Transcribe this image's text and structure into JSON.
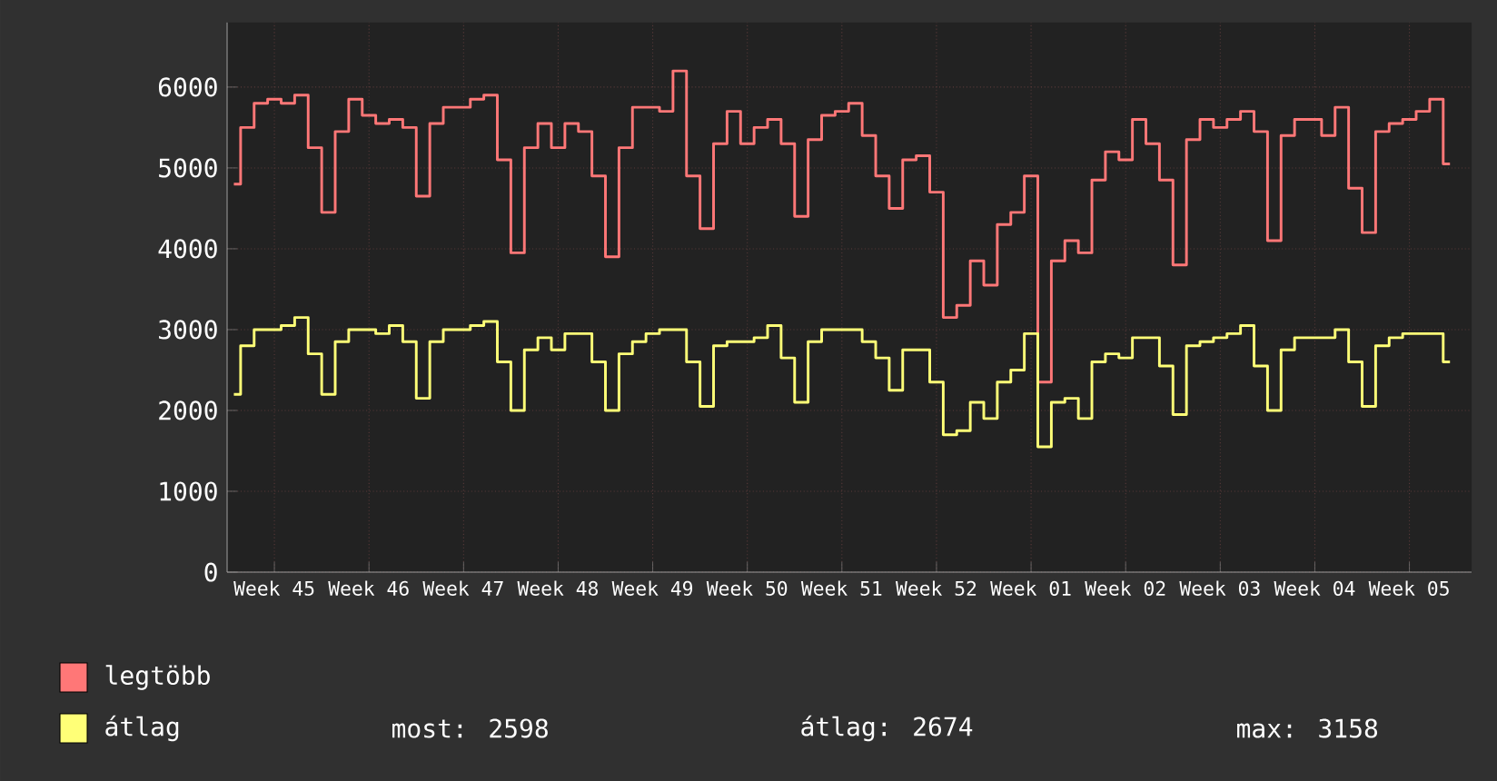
{
  "chart_data": {
    "type": "step",
    "categories": [
      null,
      null,
      null,
      "Week 45",
      null,
      null,
      null,
      null,
      null,
      null,
      "Week 46",
      null,
      null,
      null,
      null,
      null,
      null,
      "Week 47",
      null,
      null,
      null,
      null,
      null,
      null,
      "Week 48",
      null,
      null,
      null,
      null,
      null,
      null,
      "Week 49",
      null,
      null,
      null,
      null,
      null,
      null,
      "Week 50",
      null,
      null,
      null,
      null,
      null,
      null,
      "Week 51",
      null,
      null,
      null,
      null,
      null,
      null,
      "Week 52",
      null,
      null,
      null,
      null,
      null,
      null,
      "Week 01",
      null,
      null,
      null,
      null,
      null,
      null,
      "Week 02",
      null,
      null,
      null,
      null,
      null,
      null,
      "Week 03",
      null,
      null,
      null,
      null,
      null,
      null,
      "Week 04",
      null,
      null,
      null,
      null,
      null,
      null,
      "Week 05",
      null,
      null,
      null
    ],
    "series": [
      {
        "name": "legtöbb",
        "color": "#ff7777",
        "values": [
          4800,
          5500,
          5800,
          5850,
          5800,
          5900,
          5250,
          4450,
          5450,
          5850,
          5650,
          5550,
          5600,
          5500,
          4650,
          5550,
          5750,
          5750,
          5850,
          5900,
          5100,
          3950,
          5250,
          5550,
          5250,
          5550,
          5450,
          4900,
          3900,
          5250,
          5750,
          5750,
          5700,
          6200,
          4900,
          4250,
          5300,
          5700,
          5300,
          5500,
          5600,
          5300,
          4400,
          5350,
          5650,
          5700,
          5800,
          5400,
          4900,
          4500,
          5100,
          5150,
          4700,
          3150,
          3300,
          3850,
          3550,
          4300,
          4450,
          4900,
          2350,
          3850,
          4100,
          3950,
          4850,
          5200,
          5100,
          5600,
          5300,
          4850,
          3800,
          5350,
          5600,
          5500,
          5600,
          5700,
          5450,
          4100,
          5400,
          5600,
          5600,
          5400,
          5750,
          4750,
          4200,
          5450,
          5550,
          5600,
          5700,
          5850,
          5050
        ]
      },
      {
        "name": "átlag",
        "color": "#ffff77",
        "values": [
          2200,
          2800,
          3000,
          3000,
          3050,
          3150,
          2700,
          2200,
          2850,
          3000,
          3000,
          2950,
          3050,
          2850,
          2150,
          2850,
          3000,
          3000,
          3050,
          3100,
          2600,
          2000,
          2750,
          2900,
          2750,
          2950,
          2950,
          2600,
          2000,
          2700,
          2850,
          2950,
          3000,
          3000,
          2600,
          2050,
          2800,
          2850,
          2850,
          2900,
          3050,
          2650,
          2100,
          2850,
          3000,
          3000,
          3000,
          2850,
          2650,
          2250,
          2750,
          2750,
          2350,
          1700,
          1750,
          2100,
          1900,
          2350,
          2500,
          2950,
          1550,
          2100,
          2150,
          1900,
          2600,
          2700,
          2650,
          2900,
          2900,
          2550,
          1950,
          2800,
          2850,
          2900,
          2950,
          3050,
          2550,
          2000,
          2750,
          2900,
          2900,
          2900,
          3000,
          2600,
          2050,
          2800,
          2900,
          2950,
          2950,
          2950,
          2600
        ]
      }
    ],
    "ylim": [
      0,
      6800
    ],
    "yticks": [
      0,
      1000,
      2000,
      3000,
      4000,
      5000,
      6000
    ],
    "grid": true,
    "legend": "bottom left",
    "annotations": [
      "most: 2598",
      "átlag: 2674",
      "max: 3158"
    ]
  }
}
